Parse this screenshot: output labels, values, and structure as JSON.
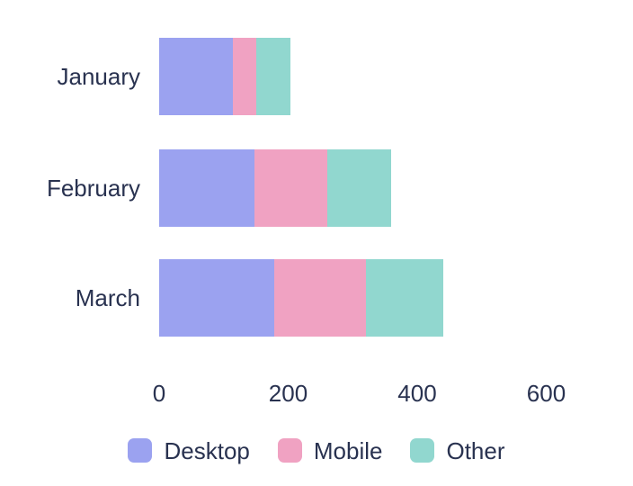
{
  "chart_data": {
    "type": "bar",
    "orientation": "horizontal",
    "stacked": true,
    "title": "",
    "xlabel": "",
    "ylabel": "",
    "categories": [
      "January",
      "February",
      "March"
    ],
    "series": [
      {
        "name": "Desktop",
        "color": "#9ba2f0",
        "values": [
          114,
          148,
          178
        ]
      },
      {
        "name": "Mobile",
        "color": "#f0a2c2",
        "values": [
          37,
          112,
          142
        ]
      },
      {
        "name": "Other",
        "color": "#91d7cf",
        "values": [
          52,
          100,
          120
        ]
      }
    ],
    "xlim": [
      0,
      600
    ],
    "xticks": [
      0,
      200,
      400,
      600
    ],
    "grid": false,
    "legend_position": "bottom"
  },
  "colors": {
    "text": "#293250",
    "background": "#ffffff"
  }
}
